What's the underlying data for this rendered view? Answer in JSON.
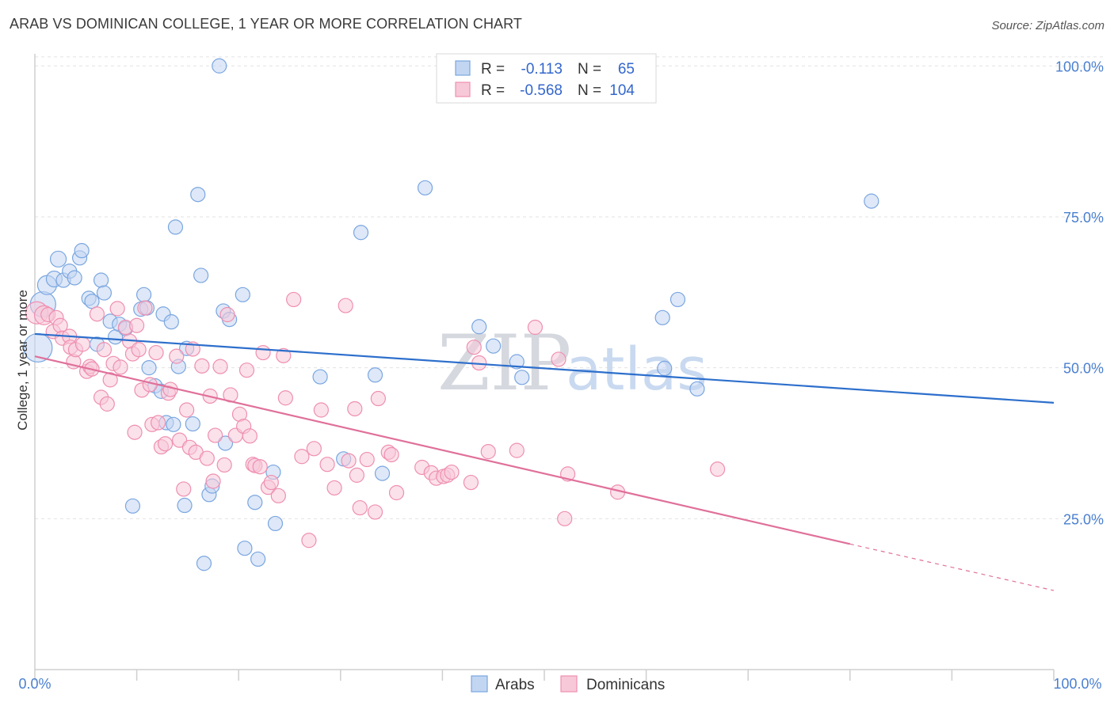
{
  "title": "ARAB VS DOMINICAN COLLEGE, 1 YEAR OR MORE CORRELATION CHART",
  "source": "Source: ZipAtlas.com",
  "watermark": {
    "zip": "ZIP",
    "atlas": "atlas"
  },
  "colors": {
    "arabs": "#7aa6e0",
    "arabs_fill": "#c2d6f2",
    "arabs_line": "#2d6fcc",
    "dominicans": "#ef8fb0",
    "dominicans_fill": "#f7c8d8",
    "dominicans_line": "#e0709a"
  },
  "legend": {
    "r_label": "R =",
    "n_label": "N =",
    "rows": [
      {
        "series": "Arabs",
        "r": "-0.113",
        "n": "65"
      },
      {
        "series": "Dominicans",
        "r": "-0.568",
        "n": "104"
      }
    ]
  },
  "chart_data": {
    "type": "scatter",
    "title": "ARAB VS DOMINICAN COLLEGE, 1 YEAR OR MORE CORRELATION CHART",
    "xlabel": "",
    "ylabel": "College, 1 year or more",
    "xlim": [
      0,
      100
    ],
    "ylim": [
      0,
      102
    ],
    "x_tick_labels": [
      "0.0%",
      "100.0%"
    ],
    "y_ticks": [
      25,
      50,
      75,
      100
    ],
    "y_tick_labels": [
      "25.0%",
      "50.0%",
      "75.0%",
      "100.0%"
    ],
    "grid": true,
    "legend_position": "bottom-center",
    "series": [
      {
        "name": "Arabs",
        "trend": {
          "x0": 0,
          "y0": 55.6,
          "x1": 100,
          "y1": 44.2
        },
        "points": [
          [
            0.3,
            53.3,
            18
          ],
          [
            0.8,
            60.5,
            16
          ],
          [
            1.2,
            63.7,
            12
          ],
          [
            1.9,
            64.7,
            10
          ],
          [
            2.3,
            68.0,
            10
          ],
          [
            2.8,
            64.5,
            9
          ],
          [
            3.4,
            66.0,
            9
          ],
          [
            3.9,
            64.9,
            9
          ],
          [
            4.4,
            68.2,
            9
          ],
          [
            4.6,
            69.4,
            9
          ],
          [
            5.3,
            61.5,
            9
          ],
          [
            5.6,
            61.0,
            9
          ],
          [
            6.1,
            53.9,
            9
          ],
          [
            6.5,
            64.5,
            9
          ],
          [
            6.8,
            62.4,
            9
          ],
          [
            7.4,
            57.7,
            9
          ],
          [
            7.9,
            55.1,
            9
          ],
          [
            8.3,
            57.2,
            9
          ],
          [
            8.9,
            56.5,
            9
          ],
          [
            9.6,
            27.1,
            9
          ],
          [
            10.4,
            59.7,
            9
          ],
          [
            10.7,
            62.1,
            9
          ],
          [
            11.0,
            59.9,
            9
          ],
          [
            11.2,
            50.0,
            9
          ],
          [
            11.8,
            47.0,
            9
          ],
          [
            12.4,
            46.1,
            9
          ],
          [
            12.6,
            58.9,
            9
          ],
          [
            12.9,
            40.9,
            9
          ],
          [
            13.4,
            57.6,
            9
          ],
          [
            13.6,
            40.6,
            9
          ],
          [
            13.8,
            73.3,
            9
          ],
          [
            14.1,
            50.2,
            9
          ],
          [
            14.7,
            27.2,
            9
          ],
          [
            14.9,
            53.2,
            9
          ],
          [
            15.5,
            40.7,
            9
          ],
          [
            16.0,
            78.7,
            9
          ],
          [
            16.3,
            65.3,
            9
          ],
          [
            16.6,
            17.6,
            9
          ],
          [
            17.1,
            29.0,
            9
          ],
          [
            17.4,
            30.4,
            9
          ],
          [
            18.1,
            100.0,
            9
          ],
          [
            18.5,
            59.4,
            9
          ],
          [
            18.7,
            37.5,
            9
          ],
          [
            19.1,
            58.0,
            9
          ],
          [
            20.4,
            62.1,
            9
          ],
          [
            20.6,
            20.1,
            9
          ],
          [
            21.6,
            27.7,
            9
          ],
          [
            21.9,
            18.3,
            9
          ],
          [
            23.4,
            32.7,
            9
          ],
          [
            23.6,
            24.2,
            9
          ],
          [
            28.0,
            48.5,
            9
          ],
          [
            30.3,
            34.9,
            9
          ],
          [
            32.0,
            72.4,
            9
          ],
          [
            33.4,
            48.8,
            9
          ],
          [
            34.1,
            32.5,
            9
          ],
          [
            38.3,
            79.8,
            9
          ],
          [
            43.6,
            56.8,
            9
          ],
          [
            45.0,
            53.6,
            9
          ],
          [
            47.3,
            51.0,
            9
          ],
          [
            47.8,
            48.4,
            9
          ],
          [
            61.6,
            58.3,
            9
          ],
          [
            63.1,
            61.3,
            9
          ],
          [
            61.8,
            49.9,
            9
          ],
          [
            65.0,
            46.5,
            9
          ],
          [
            82.1,
            77.6,
            9
          ]
        ]
      },
      {
        "name": "Dominicans",
        "trend": {
          "x0": 0,
          "y0": 51.9,
          "x1": 80,
          "y1": 20.8,
          "dash_x1": 100,
          "dash_y1": 13.1
        },
        "points": [
          [
            0.2,
            59.1,
            14
          ],
          [
            0.9,
            58.7,
            12
          ],
          [
            1.3,
            58.8,
            9
          ],
          [
            1.8,
            56.0,
            9
          ],
          [
            2.1,
            58.3,
            9
          ],
          [
            2.5,
            57.0,
            9
          ],
          [
            2.7,
            54.9,
            9
          ],
          [
            3.4,
            55.2,
            9
          ],
          [
            3.5,
            53.4,
            9
          ],
          [
            3.8,
            51.0,
            9
          ],
          [
            4.0,
            53.0,
            9
          ],
          [
            4.7,
            53.9,
            9
          ],
          [
            5.1,
            49.4,
            9
          ],
          [
            5.4,
            50.2,
            9
          ],
          [
            5.6,
            49.8,
            9
          ],
          [
            6.1,
            58.9,
            9
          ],
          [
            6.5,
            45.1,
            9
          ],
          [
            6.8,
            53.0,
            9
          ],
          [
            7.1,
            44.0,
            9
          ],
          [
            7.4,
            48.0,
            9
          ],
          [
            7.7,
            50.7,
            9
          ],
          [
            8.1,
            59.8,
            9
          ],
          [
            8.4,
            50.1,
            9
          ],
          [
            8.9,
            56.7,
            9
          ],
          [
            9.3,
            54.4,
            9
          ],
          [
            9.6,
            52.3,
            9
          ],
          [
            9.8,
            39.3,
            9
          ],
          [
            10.2,
            53.0,
            9
          ],
          [
            10.5,
            46.3,
            9
          ],
          [
            10.8,
            59.9,
            9
          ],
          [
            11.3,
            47.2,
            9
          ],
          [
            11.5,
            40.6,
            9
          ],
          [
            11.9,
            52.5,
            9
          ],
          [
            12.1,
            40.9,
            9
          ],
          [
            12.4,
            36.9,
            9
          ],
          [
            12.8,
            37.4,
            9
          ],
          [
            13.1,
            45.8,
            9
          ],
          [
            13.3,
            46.4,
            9
          ],
          [
            13.9,
            51.9,
            9
          ],
          [
            14.2,
            38.0,
            9
          ],
          [
            14.6,
            29.9,
            9
          ],
          [
            14.9,
            43.0,
            9
          ],
          [
            15.2,
            36.8,
            9
          ],
          [
            15.5,
            53.1,
            9
          ],
          [
            15.8,
            36.0,
            9
          ],
          [
            16.4,
            50.3,
            9
          ],
          [
            16.9,
            35.0,
            9
          ],
          [
            17.2,
            45.3,
            9
          ],
          [
            17.5,
            31.2,
            9
          ],
          [
            17.7,
            38.8,
            9
          ],
          [
            18.2,
            50.2,
            9
          ],
          [
            18.6,
            33.9,
            9
          ],
          [
            18.9,
            58.8,
            9
          ],
          [
            19.2,
            45.5,
            9
          ],
          [
            19.7,
            38.8,
            9
          ],
          [
            20.1,
            42.3,
            9
          ],
          [
            20.5,
            40.3,
            9
          ],
          [
            20.8,
            49.6,
            9
          ],
          [
            21.1,
            38.7,
            9
          ],
          [
            21.4,
            34.0,
            9
          ],
          [
            21.6,
            33.8,
            9
          ],
          [
            22.1,
            33.6,
            9
          ],
          [
            22.4,
            52.5,
            9
          ],
          [
            22.9,
            30.2,
            9
          ],
          [
            23.2,
            31.0,
            9
          ],
          [
            23.9,
            28.8,
            9
          ],
          [
            24.4,
            52.0,
            9
          ],
          [
            24.6,
            45.0,
            9
          ],
          [
            25.4,
            61.3,
            9
          ],
          [
            26.2,
            35.3,
            9
          ],
          [
            26.9,
            21.4,
            9
          ],
          [
            27.4,
            36.6,
            9
          ],
          [
            28.1,
            43.0,
            9
          ],
          [
            28.7,
            34.0,
            9
          ],
          [
            29.4,
            30.1,
            9
          ],
          [
            30.5,
            60.3,
            9
          ],
          [
            30.8,
            34.6,
            9
          ],
          [
            31.4,
            43.2,
            9
          ],
          [
            31.6,
            32.2,
            9
          ],
          [
            31.9,
            26.8,
            9
          ],
          [
            32.6,
            34.8,
            9
          ],
          [
            33.4,
            26.1,
            9
          ],
          [
            33.7,
            44.9,
            9
          ],
          [
            34.7,
            36.0,
            9
          ],
          [
            35.0,
            35.6,
            9
          ],
          [
            35.5,
            29.3,
            9
          ],
          [
            38.0,
            33.5,
            9
          ],
          [
            38.9,
            32.6,
            9
          ],
          [
            39.4,
            31.7,
            9
          ],
          [
            40.1,
            32.0,
            9
          ],
          [
            40.5,
            32.2,
            9
          ],
          [
            40.9,
            32.7,
            9
          ],
          [
            42.8,
            31.0,
            9
          ],
          [
            43.1,
            53.4,
            9
          ],
          [
            43.6,
            50.8,
            9
          ],
          [
            44.5,
            36.1,
            9
          ],
          [
            47.3,
            36.3,
            9
          ],
          [
            49.1,
            56.7,
            9
          ],
          [
            51.4,
            51.4,
            9
          ],
          [
            52.0,
            25.0,
            9
          ],
          [
            52.3,
            32.4,
            9
          ],
          [
            57.2,
            29.4,
            9
          ],
          [
            67.0,
            33.2,
            9
          ],
          [
            10.0,
            57.0,
            9
          ]
        ]
      }
    ]
  }
}
